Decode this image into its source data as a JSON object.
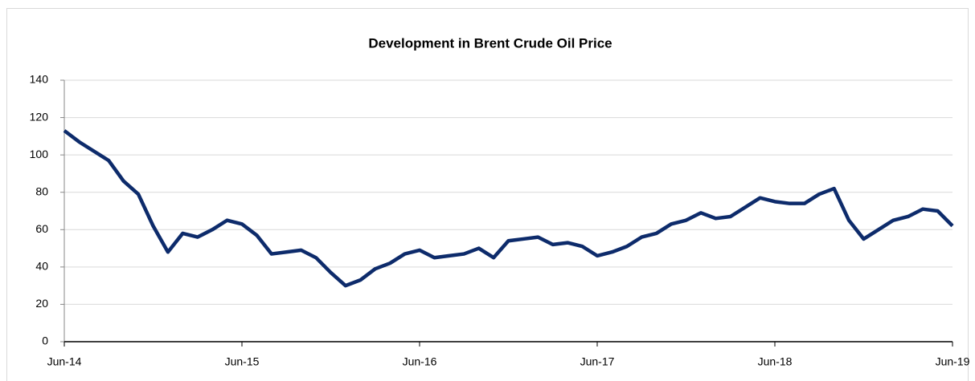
{
  "chart_data": {
    "type": "line",
    "title": "Development in Brent Crude Oil Price",
    "x": [
      "2014-06",
      "2014-07",
      "2014-08",
      "2014-09",
      "2014-10",
      "2014-11",
      "2014-12",
      "2015-01",
      "2015-02",
      "2015-03",
      "2015-04",
      "2015-05",
      "2015-06",
      "2015-07",
      "2015-08",
      "2015-09",
      "2015-10",
      "2015-11",
      "2015-12",
      "2016-01",
      "2016-02",
      "2016-03",
      "2016-04",
      "2016-05",
      "2016-06",
      "2016-07",
      "2016-08",
      "2016-09",
      "2016-10",
      "2016-11",
      "2016-12",
      "2017-01",
      "2017-02",
      "2017-03",
      "2017-04",
      "2017-05",
      "2017-06",
      "2017-07",
      "2017-08",
      "2017-09",
      "2017-10",
      "2017-11",
      "2017-12",
      "2018-01",
      "2018-02",
      "2018-03",
      "2018-04",
      "2018-05",
      "2018-06",
      "2018-07",
      "2018-08",
      "2018-09",
      "2018-10",
      "2018-11",
      "2018-12",
      "2019-01",
      "2019-02",
      "2019-03",
      "2019-04",
      "2019-05",
      "2019-06"
    ],
    "series": [
      {
        "color": "#0d2b6b",
        "values": [
          113,
          107,
          102,
          97,
          86,
          79,
          62,
          48,
          58,
          56,
          60,
          65,
          63,
          57,
          47,
          48,
          49,
          45,
          37,
          30,
          33,
          39,
          42,
          47,
          49,
          45,
          46,
          47,
          50,
          45,
          54,
          55,
          56,
          52,
          53,
          51,
          46,
          48,
          51,
          56,
          58,
          63,
          65,
          69,
          66,
          67,
          72,
          77,
          75,
          74,
          74,
          79,
          82,
          65,
          55,
          60,
          65,
          67,
          71,
          70,
          62
        ]
      }
    ],
    "xlim": [
      "2014-06",
      "2019-06"
    ],
    "xticks": [
      {
        "value": "2014-06",
        "label": "Jun-14"
      },
      {
        "value": "2015-06",
        "label": "Jun-15"
      },
      {
        "value": "2016-06",
        "label": "Jun-16"
      },
      {
        "value": "2017-06",
        "label": "Jun-17"
      },
      {
        "value": "2018-06",
        "label": "Jun-18"
      },
      {
        "value": "2019-06",
        "label": "Jun-19"
      }
    ],
    "ylim": [
      0,
      140
    ],
    "yticks": [
      0,
      20,
      40,
      60,
      80,
      100,
      120,
      140
    ],
    "grid": true
  }
}
